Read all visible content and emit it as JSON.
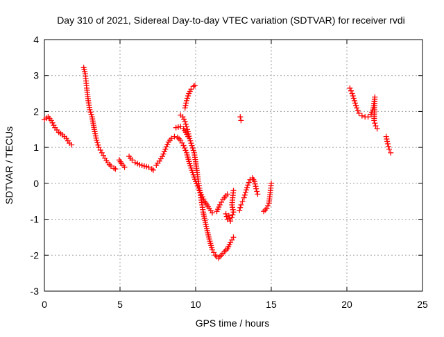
{
  "chart_data": {
    "type": "scatter",
    "title": "Day 310 of 2021, Sidereal Day-to-day VTEC variation (SDTVAR) for receiver rvdi",
    "xlabel": "GPS time / hours",
    "ylabel": "SDTVAR / TECUs",
    "xlim": [
      0,
      25
    ],
    "ylim": [
      -3,
      4
    ],
    "xticks": [
      0,
      5,
      10,
      15,
      20,
      25
    ],
    "yticks": [
      -3,
      -2,
      -1,
      0,
      1,
      2,
      3,
      4
    ],
    "grid": true,
    "legend": "none",
    "marker": "+",
    "color": "#ff0000",
    "tracks": [
      [
        [
          0.0,
          1.78
        ],
        [
          0.25,
          1.85
        ],
        [
          0.45,
          1.75
        ],
        [
          0.7,
          1.55
        ],
        [
          0.95,
          1.42
        ],
        [
          1.2,
          1.35
        ],
        [
          1.45,
          1.25
        ],
        [
          1.65,
          1.12
        ],
        [
          1.8,
          1.07
        ]
      ],
      [
        [
          2.6,
          3.22
        ],
        [
          2.7,
          3.05
        ],
        [
          2.8,
          2.65
        ],
        [
          2.9,
          2.3
        ],
        [
          3.0,
          2.05
        ],
        [
          3.15,
          1.85
        ],
        [
          3.3,
          1.5
        ],
        [
          3.45,
          1.2
        ],
        [
          3.6,
          1.0
        ],
        [
          3.8,
          0.85
        ],
        [
          4.0,
          0.7
        ],
        [
          4.2,
          0.57
        ],
        [
          4.4,
          0.48
        ],
        [
          4.6,
          0.42
        ],
        [
          4.7,
          0.4
        ]
      ],
      [
        [
          4.95,
          0.65
        ],
        [
          5.1,
          0.55
        ],
        [
          5.3,
          0.45
        ]
      ],
      [
        [
          5.6,
          0.75
        ],
        [
          5.8,
          0.65
        ],
        [
          6.0,
          0.58
        ],
        [
          6.3,
          0.52
        ],
        [
          6.6,
          0.48
        ],
        [
          6.9,
          0.45
        ],
        [
          7.1,
          0.4
        ],
        [
          7.2,
          0.37
        ]
      ],
      [
        [
          7.4,
          0.5
        ],
        [
          7.6,
          0.62
        ],
        [
          7.8,
          0.75
        ],
        [
          8.0,
          0.95
        ],
        [
          8.2,
          1.15
        ],
        [
          8.4,
          1.25
        ],
        [
          8.6,
          1.3
        ],
        [
          8.8,
          1.28
        ],
        [
          9.0,
          1.2
        ],
        [
          9.2,
          1.05
        ],
        [
          9.4,
          0.85
        ],
        [
          9.6,
          0.55
        ],
        [
          9.8,
          0.3
        ],
        [
          10.0,
          0.05
        ],
        [
          10.3,
          -0.25
        ],
        [
          10.6,
          -0.5
        ],
        [
          10.9,
          -0.7
        ],
        [
          11.1,
          -0.82
        ]
      ],
      [
        [
          8.7,
          1.55
        ],
        [
          9.0,
          1.58
        ],
        [
          9.2,
          1.52
        ],
        [
          9.35,
          1.42
        ],
        [
          9.5,
          1.3
        ]
      ],
      [
        [
          9.0,
          1.9
        ],
        [
          9.15,
          1.85
        ],
        [
          9.3,
          1.72
        ],
        [
          9.45,
          1.5
        ],
        [
          9.6,
          1.25
        ],
        [
          9.75,
          1.05
        ],
        [
          9.9,
          0.85
        ],
        [
          10.0,
          0.6
        ],
        [
          10.1,
          0.3
        ],
        [
          10.2,
          0.0
        ],
        [
          10.35,
          -0.4
        ],
        [
          10.5,
          -0.8
        ],
        [
          10.7,
          -1.2
        ],
        [
          10.9,
          -1.55
        ],
        [
          11.1,
          -1.85
        ],
        [
          11.3,
          -2.0
        ],
        [
          11.5,
          -2.08
        ],
        [
          11.7,
          -2.0
        ],
        [
          11.9,
          -1.9
        ],
        [
          12.1,
          -1.82
        ],
        [
          12.3,
          -1.65
        ],
        [
          12.5,
          -1.5
        ]
      ],
      [
        [
          9.3,
          2.1
        ],
        [
          9.4,
          2.3
        ],
        [
          9.55,
          2.5
        ],
        [
          9.7,
          2.62
        ],
        [
          9.85,
          2.7
        ],
        [
          9.95,
          2.72
        ]
      ],
      [
        [
          11.4,
          -0.78
        ],
        [
          11.6,
          -0.6
        ],
        [
          11.8,
          -0.45
        ],
        [
          12.0,
          -0.35
        ],
        [
          12.1,
          -0.3
        ]
      ],
      [
        [
          12.0,
          -0.85
        ],
        [
          12.1,
          -1.0
        ],
        [
          12.2,
          -0.9
        ],
        [
          12.3,
          -1.05
        ],
        [
          12.4,
          -0.95
        ],
        [
          12.5,
          -0.8
        ],
        [
          12.4,
          -0.6
        ],
        [
          12.45,
          -0.4
        ],
        [
          12.5,
          -0.2
        ]
      ],
      [
        [
          12.95,
          1.85
        ],
        [
          13.0,
          1.75
        ]
      ],
      [
        [
          12.9,
          -0.75
        ],
        [
          13.0,
          -0.6
        ],
        [
          13.1,
          -0.5
        ],
        [
          13.2,
          -0.4
        ],
        [
          13.3,
          -0.25
        ],
        [
          13.45,
          -0.05
        ],
        [
          13.6,
          0.1
        ],
        [
          13.75,
          0.15
        ],
        [
          13.9,
          0.05
        ],
        [
          14.0,
          -0.15
        ],
        [
          14.1,
          -0.3
        ]
      ],
      [
        [
          14.5,
          -0.78
        ],
        [
          14.7,
          -0.7
        ],
        [
          14.85,
          -0.55
        ],
        [
          14.95,
          -0.2
        ],
        [
          15.0,
          0.0
        ]
      ],
      [
        [
          20.2,
          2.65
        ],
        [
          20.35,
          2.5
        ],
        [
          20.5,
          2.3
        ],
        [
          20.65,
          2.1
        ],
        [
          20.8,
          1.95
        ],
        [
          21.0,
          1.88
        ],
        [
          21.2,
          1.85
        ],
        [
          21.4,
          1.85
        ],
        [
          21.6,
          1.92
        ],
        [
          21.75,
          2.1
        ],
        [
          21.85,
          2.4
        ],
        [
          21.8,
          1.75
        ],
        [
          21.9,
          1.6
        ],
        [
          22.0,
          1.52
        ]
      ],
      [
        [
          22.6,
          1.3
        ],
        [
          22.7,
          1.1
        ],
        [
          22.8,
          0.95
        ],
        [
          22.9,
          0.85
        ]
      ]
    ]
  }
}
